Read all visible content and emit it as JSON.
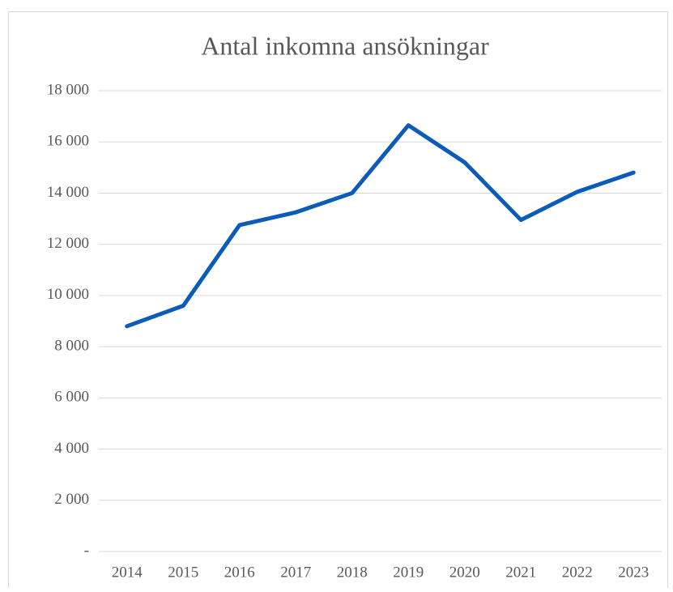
{
  "chart_data": {
    "type": "line",
    "title": "Antal inkomna ansökningar",
    "categories": [
      "2014",
      "2015",
      "2016",
      "2017",
      "2018",
      "2019",
      "2020",
      "2021",
      "2022",
      "2023"
    ],
    "series": [
      {
        "name": "Antal inkomna ansökningar",
        "color": "#0a5cb8",
        "values": [
          8800,
          9600,
          12750,
          13250,
          14000,
          16650,
          15200,
          12950,
          14050,
          14800
        ]
      }
    ],
    "ylim": [
      0,
      18000
    ],
    "yticks": [
      {
        "value": 0,
        "label": "-"
      },
      {
        "value": 2000,
        "label": "2 000"
      },
      {
        "value": 4000,
        "label": "4 000"
      },
      {
        "value": 6000,
        "label": "6 000"
      },
      {
        "value": 8000,
        "label": "8 000"
      },
      {
        "value": 10000,
        "label": "10 000"
      },
      {
        "value": 12000,
        "label": "12 000"
      },
      {
        "value": 14000,
        "label": "14 000"
      },
      {
        "value": 16000,
        "label": "16 000"
      },
      {
        "value": 18000,
        "label": "18 000"
      }
    ],
    "grid": true
  }
}
